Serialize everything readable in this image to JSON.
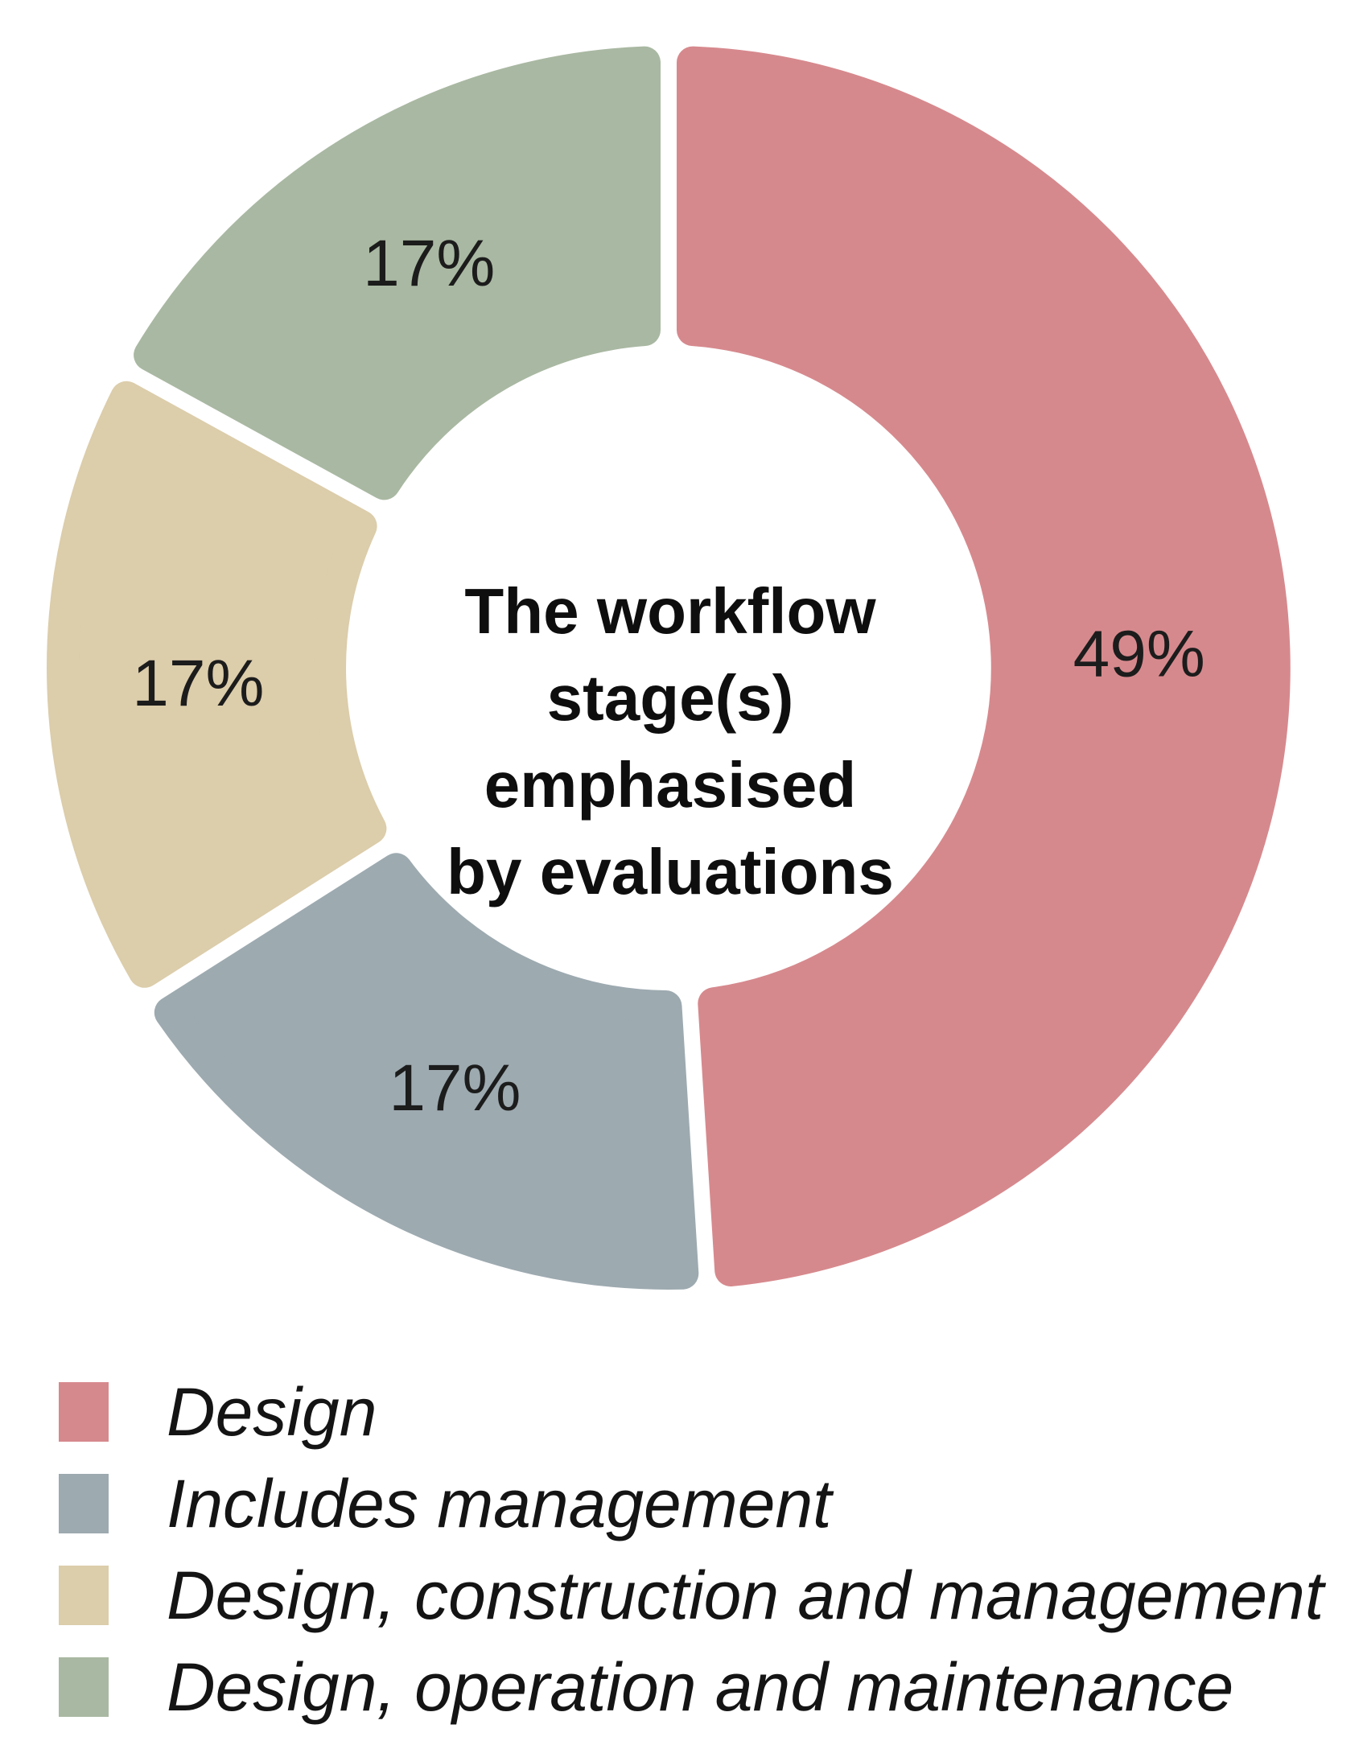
{
  "chart_data": {
    "type": "pie",
    "subtype": "donut",
    "title": "The workflow stage(s) emphasised by evaluations",
    "title_lines": [
      "The workflow",
      "stage(s)",
      "emphasised",
      "by evaluations"
    ],
    "categories": [
      "Design",
      "Includes management",
      "Design, construction and management",
      "Design, operation and maintenance"
    ],
    "values": [
      49,
      17,
      17,
      17
    ],
    "unit": "%",
    "slice_labels": [
      "49%",
      "17%",
      "17%",
      "17%"
    ],
    "colors": [
      "#d6898d",
      "#9daab0",
      "#dccdab",
      "#a9b8a2"
    ],
    "slice_label_color": "#1c1c1c",
    "start_angle_deg": 0,
    "direction": "clockwise",
    "donut_hole_ratio": 0.52,
    "grid": false,
    "legend_position": "bottom-left",
    "background": "#ffffff"
  },
  "legend": {
    "items": [
      {
        "label": "Design"
      },
      {
        "label": "Includes management"
      },
      {
        "label": "Design, construction and management"
      },
      {
        "label": "Design, operation and maintenance"
      }
    ]
  }
}
